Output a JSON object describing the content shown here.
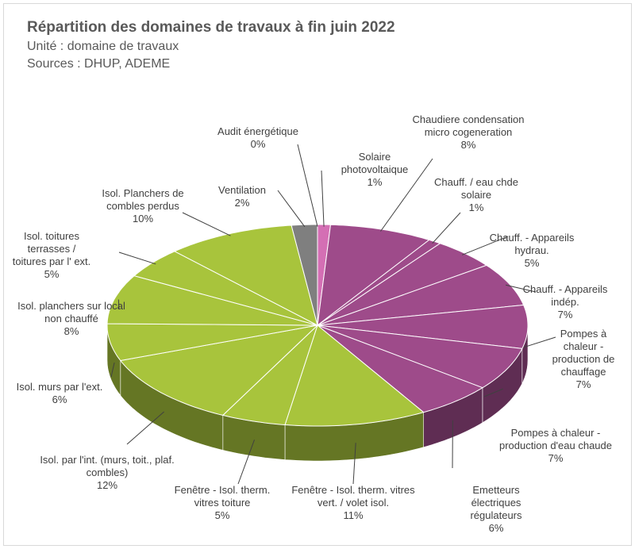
{
  "chart_data": {
    "type": "pie3d",
    "title": "Répartition des domaines de travaux à fin juin 2022",
    "subtitle": "Unité : domaine de travaux",
    "source": "Sources : DHUP, ADEME",
    "categories": [
      "Audit énergétique",
      "Solaire photovoltaique",
      "Chaudiere condensation micro cogeneration",
      "Chauff. / eau chde solaire",
      "Chauff. - Appareils hydrau.",
      "Chauff. - Appareils indép.",
      "Pompes à chaleur - production de chauffage",
      "Pompes à chaleur - production d'eau chaude",
      "Emetteurs électriques régulateurs",
      "Fenêtre - Isol. therm. vitres vert. / volet isol.",
      "Fenêtre - Isol. therm. vitres toiture",
      "Isol. par l'int. (murs, toit., plaf. combles)",
      "Isol. murs par l'ext.",
      "Isol. planchers sur local non chauffé",
      "Isol. toitures terrasses / toitures par l' ext.",
      "Isol. Planchers de combles perdus",
      "Ventilation"
    ],
    "values": [
      0,
      1,
      8,
      1,
      5,
      7,
      7,
      7,
      6,
      11,
      5,
      12,
      6,
      8,
      5,
      10,
      2
    ],
    "value_labels": [
      "0%",
      "1%",
      "8%",
      "1%",
      "5%",
      "7%",
      "7%",
      "7%",
      "6%",
      "11%",
      "5%",
      "12%",
      "6%",
      "8%",
      "5%",
      "10%",
      "2%"
    ],
    "colors": [
      "#c070a8",
      "#d46fb4",
      "#9e4b8a",
      "#9e4b8a",
      "#9e4b8a",
      "#9e4b8a",
      "#9e4b8a",
      "#9e4b8a",
      "#9e4b8a",
      "#a8c43c",
      "#a8c43c",
      "#a8c43c",
      "#a8c43c",
      "#a8c43c",
      "#a8c43c",
      "#a8c43c",
      "#7f7f7f"
    ]
  }
}
